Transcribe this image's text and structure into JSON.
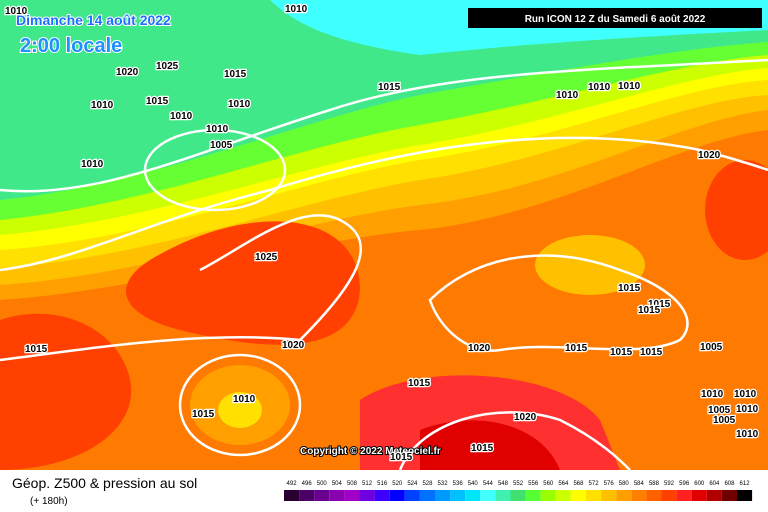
{
  "header": {
    "date": "Dimanche 14 août 2022",
    "time": "2:00 locale",
    "run": "Run ICON 12 Z du Samedi 6 août 2022"
  },
  "isobar_labels": [
    "1010",
    "1010",
    "1020",
    "1025",
    "1015",
    "1010",
    "1015",
    "1010",
    "1010",
    "1015",
    "1010",
    "1010",
    "1010",
    "1010",
    "1005",
    "1010",
    "1020",
    "1025",
    "1015",
    "1015",
    "1015",
    "1015",
    "1020",
    "1020",
    "1015",
    "1015",
    "1015",
    "1005",
    "1015",
    "1010",
    "1015",
    "1010",
    "1010",
    "1005",
    "1010",
    "1005",
    "1020",
    "1015",
    "1015",
    "1010"
  ],
  "copyright": "Copyright © 2022 Meteociel.fr",
  "footer": {
    "title": "Géop. Z500 & pression au sol",
    "subtitle": "(+ 180h)"
  },
  "legend": {
    "labels": [
      492,
      496,
      500,
      504,
      508,
      512,
      516,
      520,
      524,
      528,
      532,
      536,
      540,
      544,
      548,
      552,
      556,
      560,
      564,
      568,
      572,
      576,
      580,
      584,
      588,
      592,
      596,
      600,
      604,
      608,
      612
    ],
    "colors": [
      "#2a0033",
      "#4b0066",
      "#6a0090",
      "#8a00b0",
      "#a000c8",
      "#7000e0",
      "#3c00ff",
      "#0000ff",
      "#0040ff",
      "#0070ff",
      "#0099ff",
      "#00c0ff",
      "#00e5ff",
      "#40ffff",
      "#40f0b0",
      "#40e070",
      "#55ff33",
      "#99ff00",
      "#ccff00",
      "#ffff00",
      "#ffe000",
      "#ffc000",
      "#ffa000",
      "#ff8000",
      "#ff6000",
      "#ff4000",
      "#ff2020",
      "#e00000",
      "#b00000",
      "#700000",
      "#000000"
    ]
  }
}
